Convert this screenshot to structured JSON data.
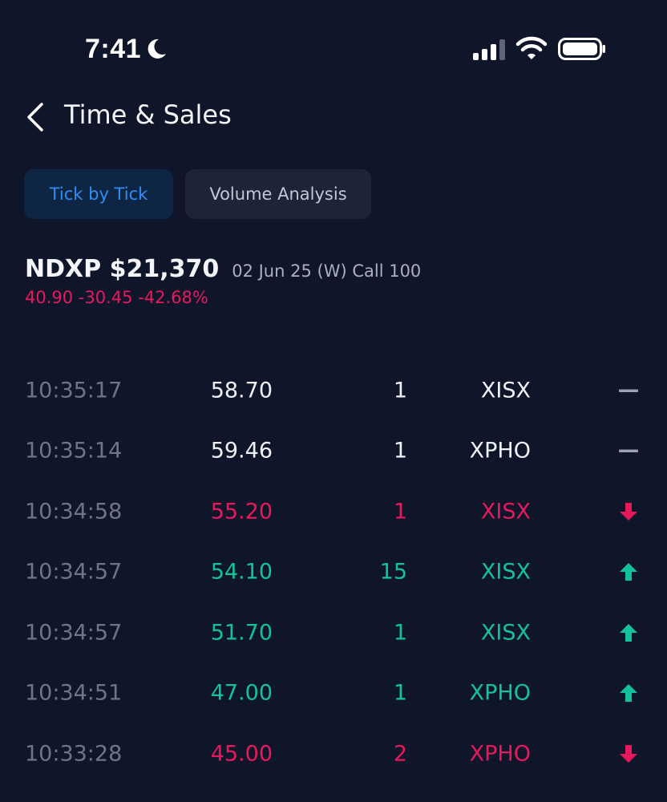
{
  "status_bar": {
    "time": "7:41",
    "icons": [
      "moon-icon",
      "signal-icon",
      "wifi-icon",
      "battery-icon"
    ]
  },
  "header": {
    "title": "Time & Sales",
    "back_icon": "chevron-left-icon"
  },
  "tabs": [
    {
      "label": "Tick by Tick",
      "active": true
    },
    {
      "label": "Volume Analysis",
      "active": false
    }
  ],
  "quote": {
    "symbol_price": "NDXP $21,370",
    "contract": "02 Jun 25 (W) Call 100",
    "change": "40.90 -30.45 -42.68%"
  },
  "colors": {
    "background": "#0f1629",
    "up": "#14c29a",
    "down": "#e8185f",
    "neutral": "#eef1f7",
    "accent": "#2f8df6"
  },
  "trades": [
    {
      "time": "10:35:17",
      "price": "58.70",
      "size": "1",
      "exchange": "XISX",
      "direction": "neutral"
    },
    {
      "time": "10:35:14",
      "price": "59.46",
      "size": "1",
      "exchange": "XPHO",
      "direction": "neutral"
    },
    {
      "time": "10:34:58",
      "price": "55.20",
      "size": "1",
      "exchange": "XISX",
      "direction": "down"
    },
    {
      "time": "10:34:57",
      "price": "54.10",
      "size": "15",
      "exchange": "XISX",
      "direction": "up"
    },
    {
      "time": "10:34:57",
      "price": "51.70",
      "size": "1",
      "exchange": "XISX",
      "direction": "up"
    },
    {
      "time": "10:34:51",
      "price": "47.00",
      "size": "1",
      "exchange": "XPHO",
      "direction": "up"
    },
    {
      "time": "10:33:28",
      "price": "45.00",
      "size": "2",
      "exchange": "XPHO",
      "direction": "down"
    }
  ]
}
